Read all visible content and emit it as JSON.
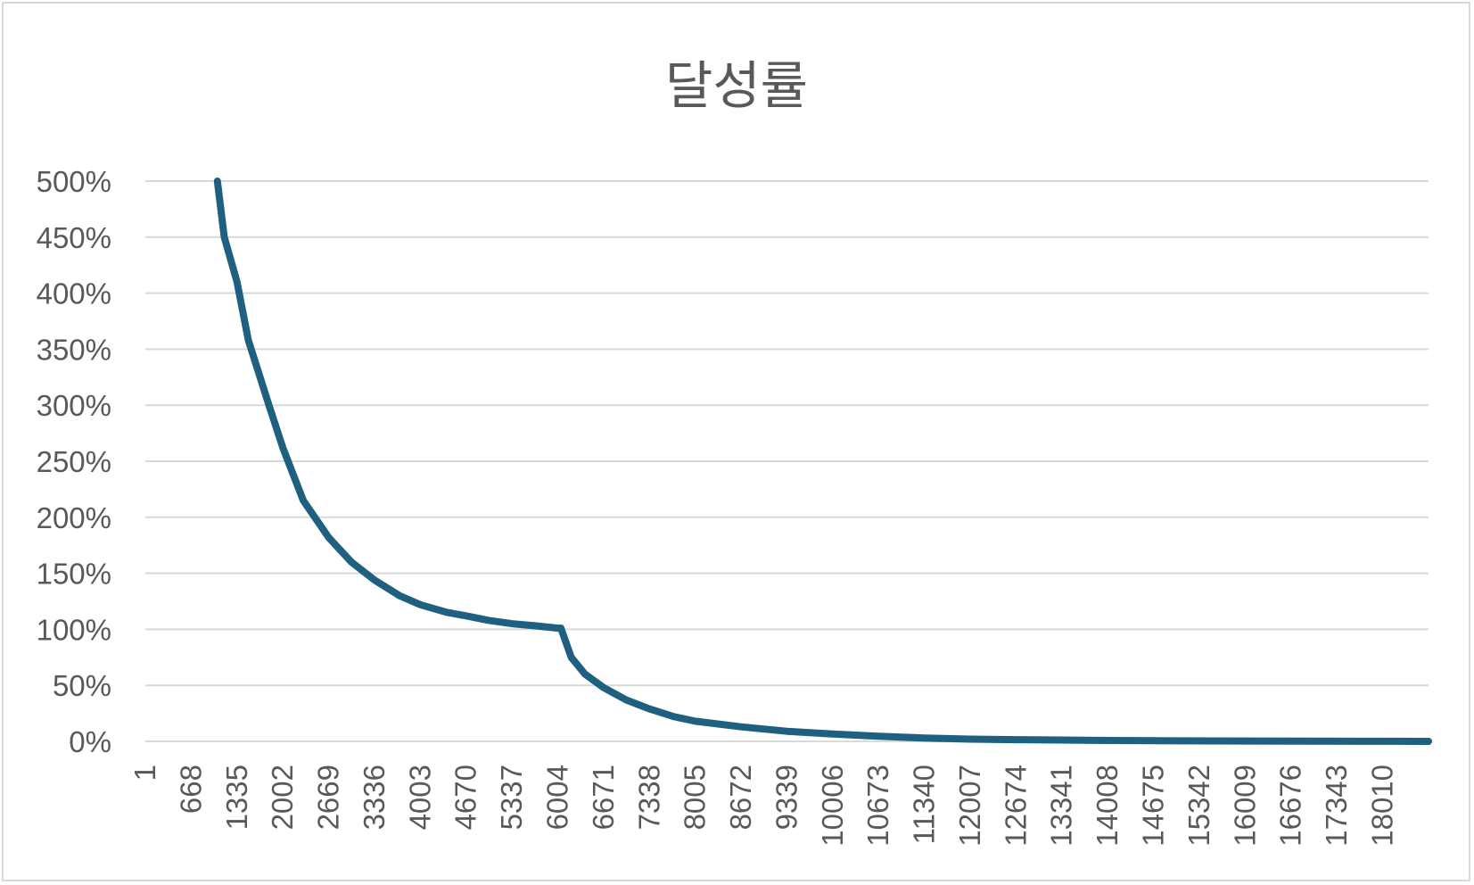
{
  "chart_data": {
    "type": "line",
    "title": "달성률",
    "xlabel": "",
    "ylabel": "",
    "ylim": [
      0,
      5
    ],
    "y_ticks": [
      "0%",
      "50%",
      "100%",
      "150%",
      "200%",
      "250%",
      "300%",
      "350%",
      "400%",
      "450%",
      "500%"
    ],
    "y_tick_values": [
      0,
      0.5,
      1,
      1.5,
      2,
      2.5,
      3,
      3.5,
      4,
      4.5,
      5
    ],
    "x_ticks": [
      "1",
      "668",
      "1335",
      "2002",
      "2669",
      "3336",
      "4003",
      "4670",
      "5337",
      "6004",
      "6671",
      "7338",
      "8005",
      "8672",
      "9339",
      "10006",
      "10673",
      "11340",
      "12007",
      "12674",
      "13341",
      "14008",
      "14675",
      "15342",
      "16009",
      "16676",
      "17343",
      "18010"
    ],
    "xlim": [
      1,
      18679
    ],
    "grid": true,
    "legend": "none",
    "series": [
      {
        "color": "#1f5f7f",
        "x": [
          1050,
          1150,
          1335,
          1500,
          1800,
          2002,
          2300,
          2669,
          3000,
          3336,
          3700,
          4003,
          4400,
          4670,
          5000,
          5337,
          5700,
          6004,
          6050,
          6200,
          6400,
          6671,
          7000,
          7338,
          7700,
          8005,
          8672,
          9339,
          10006,
          10673,
          11340,
          12007,
          12674,
          13341,
          14008,
          15000,
          16000,
          17000,
          18010,
          18679
        ],
        "values": [
          5.0,
          4.5,
          4.1,
          3.58,
          3.0,
          2.62,
          2.15,
          1.82,
          1.6,
          1.44,
          1.3,
          1.22,
          1.15,
          1.12,
          1.08,
          1.05,
          1.03,
          1.01,
          1.01,
          0.75,
          0.6,
          0.48,
          0.37,
          0.29,
          0.22,
          0.18,
          0.13,
          0.09,
          0.065,
          0.045,
          0.03,
          0.02,
          0.015,
          0.012,
          0.008,
          0.005,
          0.003,
          0.002,
          0.001,
          0.0
        ]
      }
    ]
  }
}
